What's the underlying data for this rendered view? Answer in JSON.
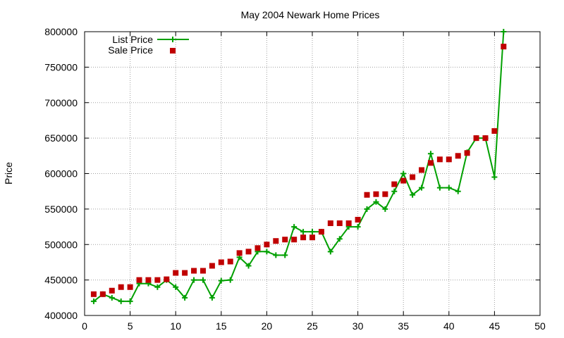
{
  "chart_data": {
    "type": "line",
    "title": "May 2004 Newark Home Prices",
    "xlabel": "",
    "ylabel": "Price",
    "xlim": [
      0,
      50
    ],
    "ylim": [
      400000,
      800000
    ],
    "xticks": [
      0,
      5,
      10,
      15,
      20,
      25,
      30,
      35,
      40,
      45,
      50
    ],
    "yticks": [
      400000,
      450000,
      500000,
      550000,
      600000,
      650000,
      700000,
      750000,
      800000
    ],
    "grid": true,
    "legend": "top-left",
    "series": [
      {
        "name": "List Price",
        "style": "line+plus",
        "color": "#00a000",
        "x": [
          1,
          2,
          3,
          4,
          5,
          6,
          7,
          8,
          9,
          10,
          11,
          12,
          13,
          14,
          15,
          16,
          17,
          18,
          19,
          20,
          21,
          22,
          23,
          24,
          25,
          26,
          27,
          28,
          29,
          30,
          31,
          32,
          33,
          34,
          35,
          36,
          37,
          38,
          39,
          40,
          41,
          42,
          43,
          44,
          45,
          46
        ],
        "values": [
          420000,
          430000,
          425000,
          420000,
          420000,
          445000,
          445000,
          440000,
          450000,
          440000,
          425000,
          450000,
          450000,
          425000,
          449000,
          450000,
          482000,
          470000,
          490000,
          490000,
          485000,
          485000,
          525000,
          518000,
          518000,
          518000,
          490000,
          508000,
          525000,
          525000,
          550000,
          560000,
          550000,
          575000,
          600000,
          570000,
          580000,
          628000,
          580000,
          580000,
          575000,
          630000,
          650000,
          650000,
          595000,
          800000
        ]
      },
      {
        "name": "Sale Price",
        "style": "points",
        "color": "#c00000",
        "x": [
          1,
          2,
          3,
          4,
          5,
          6,
          7,
          8,
          9,
          10,
          11,
          12,
          13,
          14,
          15,
          16,
          17,
          18,
          19,
          20,
          21,
          22,
          23,
          24,
          25,
          26,
          27,
          28,
          29,
          30,
          31,
          32,
          33,
          34,
          35,
          36,
          37,
          38,
          39,
          40,
          41,
          42,
          43,
          44,
          45,
          46
        ],
        "values": [
          430000,
          430000,
          435000,
          440000,
          440000,
          450000,
          450000,
          450000,
          451000,
          460000,
          460000,
          463000,
          463000,
          470000,
          475000,
          476000,
          488000,
          490000,
          495000,
          500000,
          505000,
          507000,
          507000,
          510000,
          510000,
          518000,
          530000,
          530000,
          530000,
          535000,
          570000,
          571000,
          571000,
          585000,
          590000,
          595000,
          605000,
          615000,
          620000,
          620000,
          625000,
          629000,
          650000,
          650000,
          660000,
          779000
        ]
      }
    ]
  }
}
